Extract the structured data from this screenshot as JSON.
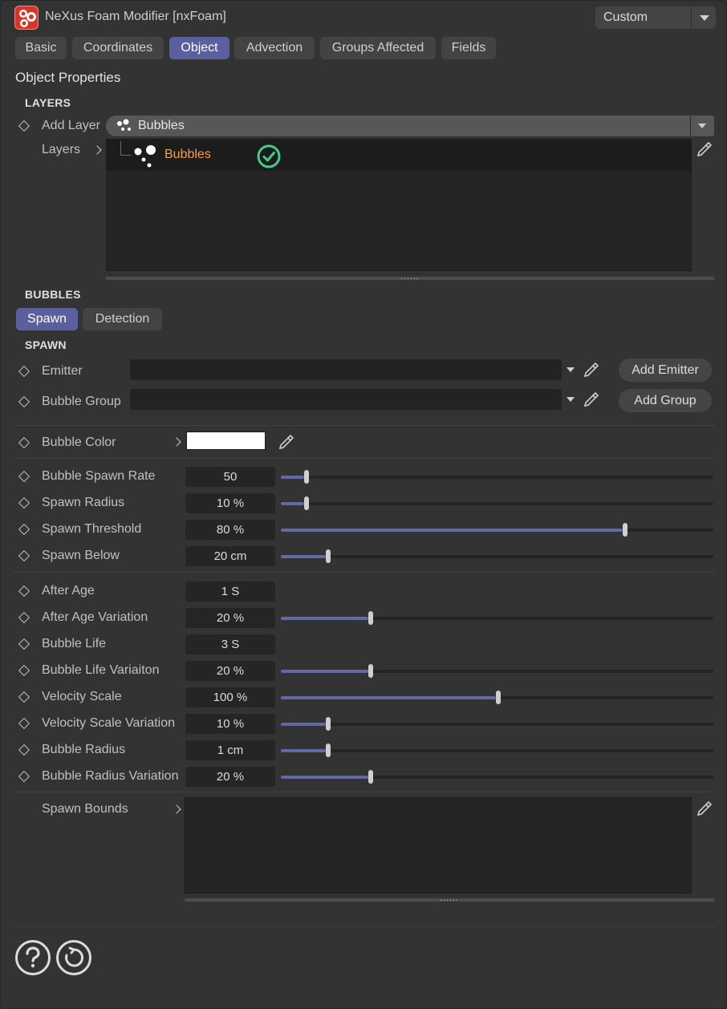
{
  "header": {
    "title": "NeXus Foam Modifier [nxFoam]",
    "preset": "Custom"
  },
  "tabs": [
    {
      "label": "Basic",
      "active": false
    },
    {
      "label": "Coordinates",
      "active": false
    },
    {
      "label": "Object",
      "active": true
    },
    {
      "label": "Advection",
      "active": false
    },
    {
      "label": "Groups Affected",
      "active": false
    },
    {
      "label": "Fields",
      "active": false
    }
  ],
  "section_title": "Object Properties",
  "layers": {
    "group_title": "LAYERS",
    "add_layer_label": "Add Layer",
    "add_layer_value": "Bubbles",
    "layers_label": "Layers",
    "items": [
      {
        "name": "Bubbles",
        "enabled": true
      }
    ]
  },
  "bubbles": {
    "group_title": "BUBBLES",
    "subtabs": [
      {
        "label": "Spawn",
        "active": true
      },
      {
        "label": "Detection",
        "active": false
      }
    ]
  },
  "spawn": {
    "group_title": "SPAWN",
    "emitter_label": "Emitter",
    "emitter_value": "",
    "add_emitter": "Add Emitter",
    "bubble_group_label": "Bubble Group",
    "bubble_group_value": "",
    "add_group": "Add Group",
    "bubble_color_label": "Bubble Color",
    "bubble_color": "#ffffff",
    "params_a": [
      {
        "label": "Bubble Spawn Rate",
        "value": "50",
        "slider": 0.05
      },
      {
        "label": "Spawn Radius",
        "value": "10 %",
        "slider": 0.05
      },
      {
        "label": "Spawn Threshold",
        "value": "80 %",
        "slider": 0.8
      },
      {
        "label": "Spawn Below",
        "value": "20 cm",
        "slider": 0.1
      }
    ],
    "params_b": [
      {
        "label": "After Age",
        "value": "1 S",
        "slider": null
      },
      {
        "label": "After Age Variation",
        "value": "20 %",
        "slider": 0.2
      },
      {
        "label": "Bubble Life",
        "value": "3 S",
        "slider": null
      },
      {
        "label": "Bubble Life Variaiton",
        "value": "20 %",
        "slider": 0.2
      },
      {
        "label": "Velocity Scale",
        "value": "100 %",
        "slider": 0.5
      },
      {
        "label": "Velocity Scale Variation",
        "value": "10 %",
        "slider": 0.1
      },
      {
        "label": "Bubble Radius",
        "value": "1 cm",
        "slider": 0.1
      },
      {
        "label": "Bubble Radius Variation",
        "value": "20 %",
        "slider": 0.2
      }
    ],
    "spawn_bounds_label": "Spawn Bounds"
  },
  "icons": {
    "app": "foam-modifier-icon",
    "help": "help-icon",
    "reset": "reset-icon",
    "picker": "eyedropper-icon"
  },
  "colors": {
    "accent": "#5a5f9d",
    "slider_fill": "#6368a8",
    "layer_name": "#f0a04b",
    "check": "#4bc98b"
  }
}
